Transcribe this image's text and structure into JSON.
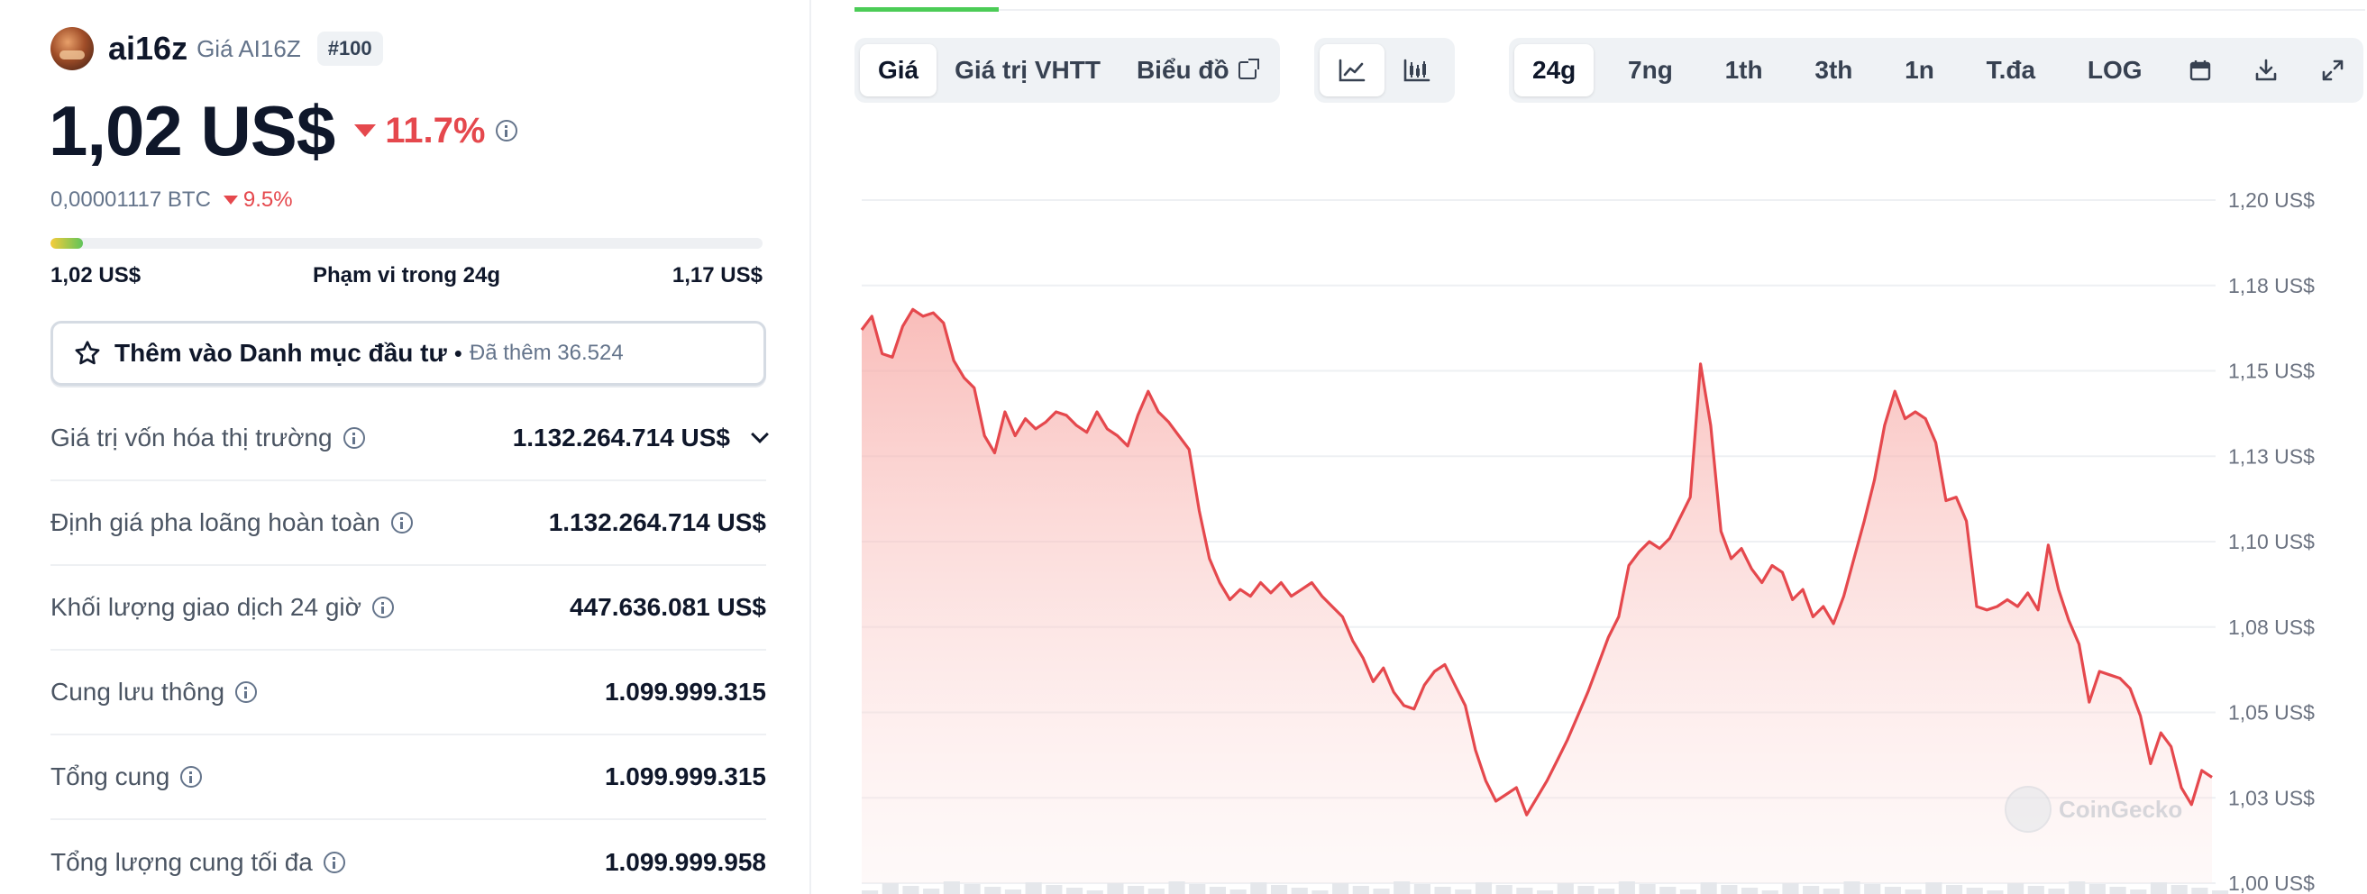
{
  "coin": {
    "name": "ai16z",
    "subtitle": "Giá AI16Z",
    "rank": "#100",
    "price": "1,02 US$",
    "change_24h": "11.7%",
    "btc_price": "0,00001117 BTC",
    "btc_change": "9.5%"
  },
  "range": {
    "low": "1,02 US$",
    "label": "Phạm vi trong 24g",
    "high": "1,17 US$",
    "position_fraction": 0.045
  },
  "watchlist": {
    "label": "Thêm vào Danh mục đầu tư",
    "separator": "•",
    "count": "Đã thêm 36.524"
  },
  "stats": [
    {
      "label": "Giá trị vốn hóa thị trường",
      "value": "1.132.264.714 US$"
    },
    {
      "label": "Định giá pha loãng hoàn toàn",
      "value": "1.132.264.714 US$"
    },
    {
      "label": "Khối lượng giao dịch 24 giờ",
      "value": "447.636.081 US$"
    },
    {
      "label": "Cung lưu thông",
      "value": "1.099.999.315"
    },
    {
      "label": "Tổng cung",
      "value": "1.099.999.315"
    },
    {
      "label": "Tổng lượng cung tối đa",
      "value": "1.099.999.958"
    }
  ],
  "toolbar": {
    "view_tabs": [
      "Giá",
      "Giá trị VHTT",
      "Biểu đồ"
    ],
    "ranges": [
      "24g",
      "7ng",
      "1th",
      "3th",
      "1n",
      "T.đa",
      "LOG"
    ]
  },
  "watermark": "CoinGecko",
  "colors": {
    "accent_green": "#4bcc56",
    "down_red": "#e5484d",
    "line": "#e5484d"
  },
  "chart_data": {
    "type": "area",
    "y_tick_labels": [
      "1,20 US$",
      "1,18 US$",
      "1,15 US$",
      "1,13 US$",
      "1,10 US$",
      "1,08 US$",
      "1,05 US$",
      "1,03 US$",
      "1,00 US$"
    ],
    "ylim": [
      1.0,
      1.2
    ],
    "grid": true,
    "values": [
      1.162,
      1.166,
      1.155,
      1.154,
      1.163,
      1.168,
      1.166,
      1.167,
      1.164,
      1.153,
      1.148,
      1.145,
      1.131,
      1.126,
      1.138,
      1.131,
      1.136,
      1.133,
      1.135,
      1.138,
      1.137,
      1.134,
      1.132,
      1.138,
      1.133,
      1.131,
      1.128,
      1.137,
      1.144,
      1.138,
      1.135,
      1.131,
      1.127,
      1.109,
      1.095,
      1.088,
      1.083,
      1.086,
      1.084,
      1.088,
      1.085,
      1.088,
      1.084,
      1.086,
      1.088,
      1.084,
      1.081,
      1.078,
      1.071,
      1.066,
      1.059,
      1.063,
      1.056,
      1.052,
      1.051,
      1.058,
      1.062,
      1.064,
      1.058,
      1.052,
      1.039,
      1.03,
      1.024,
      1.026,
      1.028,
      1.02,
      1.025,
      1.03,
      1.036,
      1.042,
      1.049,
      1.056,
      1.064,
      1.072,
      1.078,
      1.093,
      1.097,
      1.1,
      1.098,
      1.101,
      1.107,
      1.113,
      1.152,
      1.134,
      1.103,
      1.095,
      1.098,
      1.092,
      1.088,
      1.093,
      1.091,
      1.083,
      1.086,
      1.078,
      1.081,
      1.076,
      1.084,
      1.095,
      1.106,
      1.118,
      1.134,
      1.144,
      1.136,
      1.138,
      1.136,
      1.129,
      1.112,
      1.113,
      1.106,
      1.081,
      1.08,
      1.081,
      1.083,
      1.081,
      1.085,
      1.08,
      1.099,
      1.086,
      1.077,
      1.07,
      1.053,
      1.062,
      1.061,
      1.06,
      1.057,
      1.049,
      1.035,
      1.044,
      1.04,
      1.028,
      1.023,
      1.033,
      1.031
    ]
  }
}
